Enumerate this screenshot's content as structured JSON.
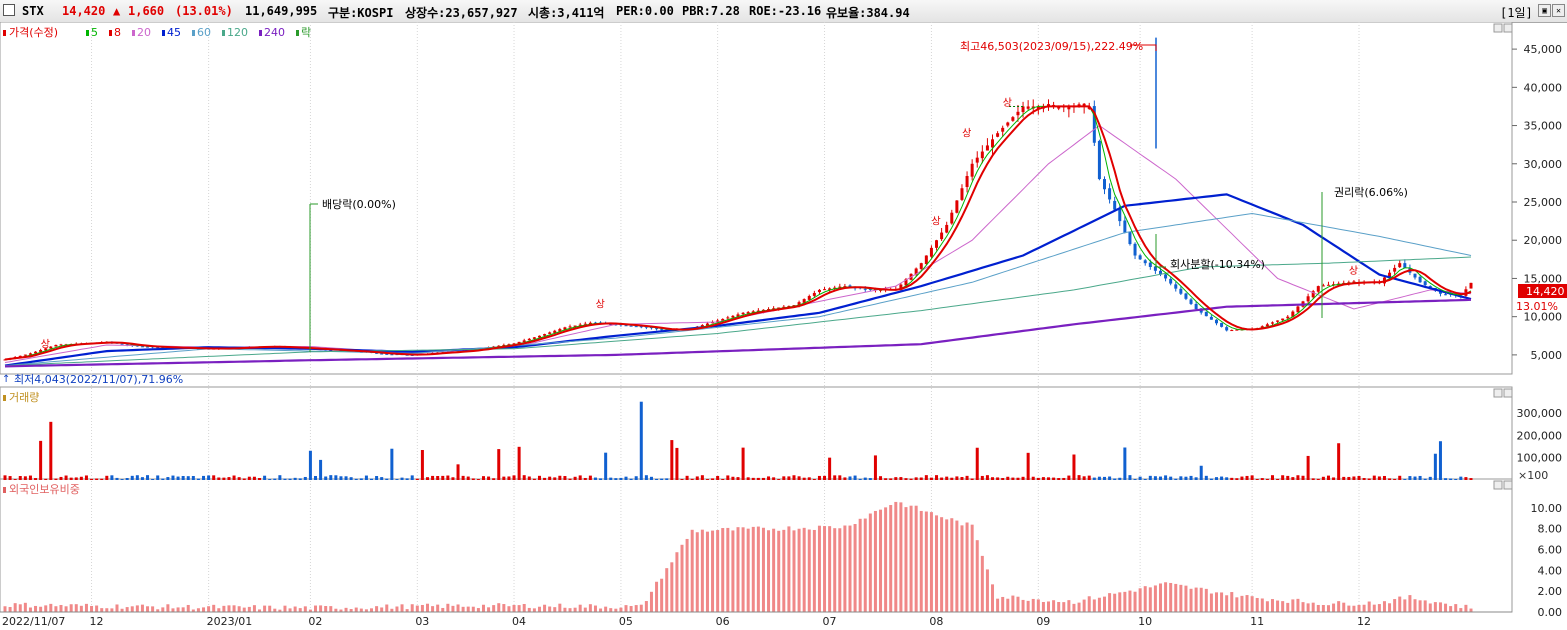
{
  "header": {
    "symbol": "STX",
    "price": "14,420",
    "change_arrow": "▲",
    "change": "1,660",
    "change_pct": "(13.01%)",
    "volume": "11,649,995",
    "market": "구분:KOSPI",
    "shares": "상장수:23,657,927",
    "market_cap": "시총:3,411억",
    "per": "PER:0.00",
    "pbr": "PBR:7.28",
    "roe": "ROE:-23.16",
    "float_ratio": "유보율:384.94",
    "period": "[1일]"
  },
  "legend": {
    "price": "가격(수정)",
    "ma": [
      {
        "label": "5",
        "color": "#00b400"
      },
      {
        "label": "8",
        "color": "#e00000"
      },
      {
        "label": "20",
        "color": "#cc66cc"
      },
      {
        "label": "45",
        "color": "#0020d0"
      },
      {
        "label": "60",
        "color": "#5aa0c8"
      },
      {
        "label": "120",
        "color": "#4aa88a"
      },
      {
        "label": "240",
        "color": "#7a20c0"
      }
    ],
    "ex_marker": "락",
    "volume": "거래량",
    "foreign": "외국인보유비중"
  },
  "colors": {
    "up": "#e00000",
    "down": "#1060d0",
    "foreign_bar": "#f08888"
  },
  "annotations": {
    "high": "최고46,503(2023/09/15),222.49%",
    "low": "최저4,043(2022/11/07),71.96%",
    "dividend": "배당락(0.00%)",
    "rights": "권리락(6.06%)",
    "merge": "회사분할(-10.34%)",
    "up_limit": "상",
    "price_tag": "14,420",
    "pct_tag": "13.01%",
    "volume_unit": "×100"
  },
  "chart_data": [
    {
      "type": "candlestick",
      "title": "가격(수정)",
      "x_labels": [
        "2022/11/07",
        "12",
        "2023/01",
        "02",
        "03",
        "04",
        "05",
        "06",
        "07",
        "08",
        "09",
        "10",
        "11",
        "12"
      ],
      "y_ticks": [
        "45,000",
        "40,000",
        "35,000",
        "30,000",
        "25,000",
        "20,000",
        "15,000",
        "10,000",
        "5,000"
      ],
      "ylim": [
        2500,
        47500
      ],
      "close": [
        [
          0,
          4400
        ],
        [
          5,
          5200
        ],
        [
          10,
          6300
        ],
        [
          15,
          6500
        ],
        [
          20,
          6700
        ],
        [
          25,
          6200
        ],
        [
          30,
          6000
        ],
        [
          35,
          5900
        ],
        [
          40,
          5800
        ],
        [
          45,
          5900
        ],
        [
          50,
          6100
        ],
        [
          55,
          6000
        ],
        [
          60,
          5800
        ],
        [
          65,
          5600
        ],
        [
          70,
          5400
        ],
        [
          75,
          5100
        ],
        [
          80,
          5000
        ],
        [
          85,
          5300
        ],
        [
          90,
          5500
        ],
        [
          95,
          6000
        ],
        [
          100,
          6500
        ],
        [
          105,
          7500
        ],
        [
          110,
          8600
        ],
        [
          115,
          9200
        ],
        [
          120,
          9000
        ],
        [
          125,
          8700
        ],
        [
          130,
          8200
        ],
        [
          135,
          8500
        ],
        [
          140,
          9500
        ],
        [
          145,
          10500
        ],
        [
          150,
          11000
        ],
        [
          155,
          11500
        ],
        [
          160,
          13500
        ],
        [
          165,
          14000
        ],
        [
          170,
          13500
        ],
        [
          175,
          13500
        ],
        [
          180,
          17000
        ],
        [
          185,
          22000
        ],
        [
          190,
          30000
        ],
        [
          195,
          34000
        ],
        [
          200,
          37500
        ],
        [
          205,
          37500
        ],
        [
          210,
          37500
        ],
        [
          213,
          37500
        ],
        [
          215,
          28000
        ],
        [
          218,
          24000
        ],
        [
          222,
          18000
        ],
        [
          228,
          15000
        ],
        [
          234,
          11000
        ],
        [
          240,
          8200
        ],
        [
          246,
          8500
        ],
        [
          252,
          10000
        ],
        [
          258,
          14000
        ],
        [
          264,
          14500
        ],
        [
          270,
          14500
        ],
        [
          274,
          17000
        ],
        [
          278,
          14500
        ],
        [
          282,
          13000
        ],
        [
          286,
          12742
        ],
        [
          288,
          14420
        ]
      ],
      "ma": {
        "20": [
          [
            0,
            4000
          ],
          [
            20,
            6300
          ],
          [
            40,
            6000
          ],
          [
            60,
            6100
          ],
          [
            80,
            5200
          ],
          [
            100,
            6000
          ],
          [
            120,
            9000
          ],
          [
            140,
            9300
          ],
          [
            160,
            12000
          ],
          [
            175,
            14000
          ],
          [
            190,
            20000
          ],
          [
            205,
            30000
          ],
          [
            215,
            35000
          ],
          [
            230,
            28000
          ],
          [
            250,
            15000
          ],
          [
            265,
            11000
          ],
          [
            280,
            13500
          ],
          [
            288,
            13000
          ]
        ],
        "45": [
          [
            0,
            3600
          ],
          [
            20,
            5500
          ],
          [
            40,
            6000
          ],
          [
            60,
            5800
          ],
          [
            80,
            5400
          ],
          [
            100,
            6000
          ],
          [
            120,
            7500
          ],
          [
            140,
            8800
          ],
          [
            160,
            10500
          ],
          [
            180,
            14000
          ],
          [
            200,
            18000
          ],
          [
            220,
            24500
          ],
          [
            240,
            26000
          ],
          [
            255,
            22000
          ],
          [
            270,
            15500
          ],
          [
            288,
            12300
          ]
        ],
        "60": [
          [
            0,
            3600
          ],
          [
            40,
            5800
          ],
          [
            80,
            5200
          ],
          [
            120,
            7200
          ],
          [
            160,
            10000
          ],
          [
            190,
            14500
          ],
          [
            220,
            21000
          ],
          [
            245,
            23500
          ],
          [
            270,
            20500
          ],
          [
            288,
            18000
          ]
        ],
        "120": [
          [
            0,
            3600
          ],
          [
            60,
            5400
          ],
          [
            100,
            5800
          ],
          [
            140,
            7800
          ],
          [
            180,
            10800
          ],
          [
            210,
            13500
          ],
          [
            235,
            16500
          ],
          [
            260,
            17000
          ],
          [
            288,
            17800
          ]
        ],
        "240": [
          [
            0,
            3500
          ],
          [
            60,
            4300
          ],
          [
            120,
            5000
          ],
          [
            180,
            6400
          ],
          [
            210,
            9000
          ],
          [
            240,
            11300
          ],
          [
            288,
            12200
          ]
        ]
      }
    },
    {
      "type": "bar",
      "title": "거래량",
      "y_ticks": [
        "300,000",
        "200,000",
        "100,000"
      ],
      "unit": "×100",
      "ylim": [
        0,
        380000
      ]
    },
    {
      "type": "bar",
      "title": "외국인보유비중",
      "y_ticks": [
        "10.00",
        "8.00",
        "6.00",
        "4.00",
        "2.00",
        "0.00"
      ],
      "ylim": [
        0,
        12
      ],
      "series": [
        [
          0,
          0.7
        ],
        [
          30,
          0.5
        ],
        [
          60,
          0.4
        ],
        [
          90,
          0.6
        ],
        [
          105,
          0.6
        ],
        [
          125,
          0.5
        ],
        [
          135,
          7.8
        ],
        [
          165,
          8.2
        ],
        [
          175,
          10.6
        ],
        [
          190,
          8.2
        ],
        [
          195,
          1.5
        ],
        [
          210,
          1.0
        ],
        [
          228,
          2.7
        ],
        [
          245,
          1.4
        ],
        [
          260,
          0.8
        ],
        [
          270,
          0.9
        ],
        [
          276,
          1.4
        ],
        [
          288,
          0.4
        ]
      ]
    }
  ]
}
